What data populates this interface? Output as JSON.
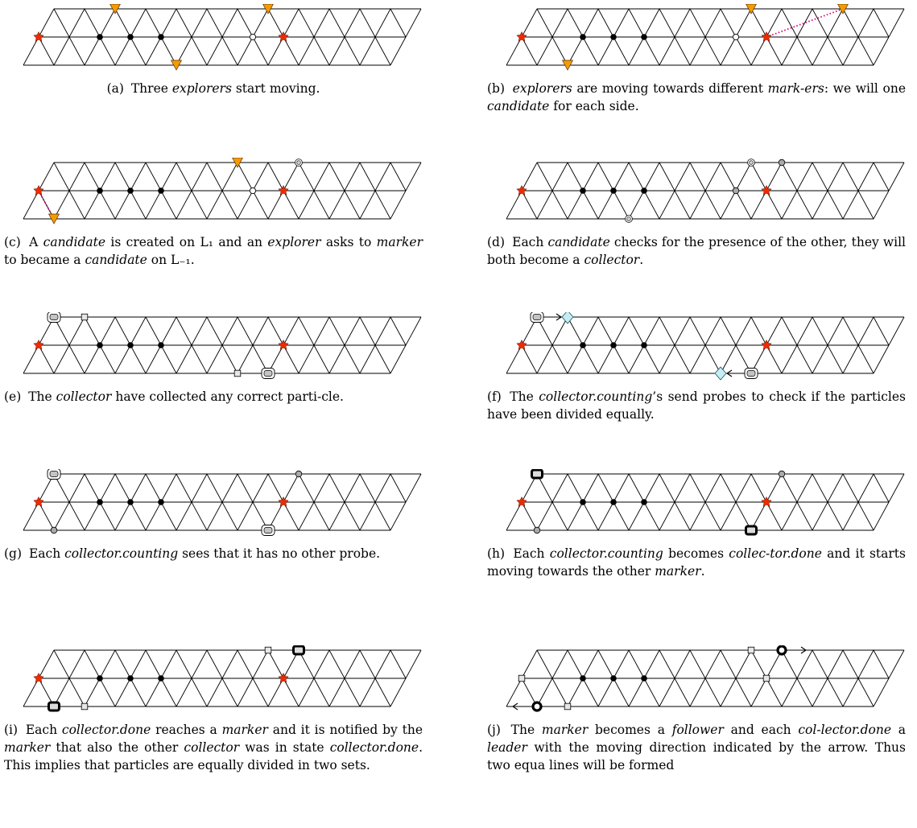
{
  "panels": [
    {
      "id": "a",
      "caption": [
        {
          "text": "(a)",
          "tag": true
        },
        {
          "text": " Three "
        },
        {
          "text": "explorers",
          "em": true
        },
        {
          "text": " start moving."
        }
      ],
      "caption_align": "center",
      "nodes": [
        {
          "type": "star",
          "at": [
            0,
            1
          ]
        },
        {
          "type": "black",
          "at": [
            2,
            1
          ]
        },
        {
          "type": "black",
          "at": [
            3,
            1
          ]
        },
        {
          "type": "black",
          "at": [
            4,
            1
          ]
        },
        {
          "type": "open",
          "at": [
            7,
            1
          ]
        },
        {
          "type": "star",
          "at": [
            8,
            1
          ]
        },
        {
          "type": "tri",
          "at": [
            2,
            0
          ]
        },
        {
          "type": "tri",
          "at": [
            7,
            0
          ]
        },
        {
          "type": "tri",
          "at": [
            5,
            2
          ]
        }
      ]
    },
    {
      "id": "b",
      "caption": [
        {
          "text": "(b)",
          "tag": true
        },
        {
          "text": "  "
        },
        {
          "text": "explorers",
          "em": true
        },
        {
          "text": " are moving towards different "
        },
        {
          "text": "mark-ers",
          "em": true
        },
        {
          "text": ": we will one "
        },
        {
          "text": "candidate",
          "em": true
        },
        {
          "text": " for each side."
        }
      ],
      "nodes": [
        {
          "type": "star",
          "at": [
            0,
            1
          ]
        },
        {
          "type": "black",
          "at": [
            2,
            1
          ]
        },
        {
          "type": "black",
          "at": [
            3,
            1
          ]
        },
        {
          "type": "black",
          "at": [
            4,
            1
          ]
        },
        {
          "type": "open",
          "at": [
            7,
            1
          ]
        },
        {
          "type": "star",
          "at": [
            8,
            1
          ]
        },
        {
          "type": "tri",
          "at": [
            7,
            0
          ]
        },
        {
          "type": "tri",
          "at": [
            10,
            0
          ]
        },
        {
          "type": "tri",
          "at": [
            2,
            2
          ]
        },
        {
          "type": "dotted",
          "from": [
            10,
            0
          ],
          "to": [
            8,
            1
          ]
        }
      ]
    },
    {
      "id": "c",
      "caption": [
        {
          "text": "(c)",
          "tag": true
        },
        {
          "text": " A "
        },
        {
          "text": "candidate",
          "em": true
        },
        {
          "text": " is created on L₁ and an "
        },
        {
          "text": "explorer",
          "em": true
        },
        {
          "text": " asks to "
        },
        {
          "text": "marker",
          "em": true
        },
        {
          "text": " to became a "
        },
        {
          "text": "candidate",
          "em": true
        },
        {
          "text": " on L₋₁."
        }
      ],
      "nodes": [
        {
          "type": "star",
          "at": [
            0,
            1
          ]
        },
        {
          "type": "black",
          "at": [
            2,
            1
          ]
        },
        {
          "type": "black",
          "at": [
            3,
            1
          ]
        },
        {
          "type": "black",
          "at": [
            4,
            1
          ]
        },
        {
          "type": "open",
          "at": [
            7,
            1
          ]
        },
        {
          "type": "star",
          "at": [
            8,
            1
          ]
        },
        {
          "type": "tri",
          "at": [
            6,
            0
          ]
        },
        {
          "type": "double",
          "at": [
            8,
            0
          ]
        },
        {
          "type": "tri",
          "at": [
            1,
            2
          ]
        },
        {
          "type": "dotted",
          "from": [
            0,
            1
          ],
          "to": [
            1,
            2
          ]
        }
      ]
    },
    {
      "id": "d",
      "caption": [
        {
          "text": "(d)",
          "tag": true
        },
        {
          "text": " Each "
        },
        {
          "text": "candidate",
          "em": true
        },
        {
          "text": " checks for the presence of the other, they will both become a "
        },
        {
          "text": "collector",
          "em": true
        },
        {
          "text": "."
        }
      ],
      "nodes": [
        {
          "type": "star",
          "at": [
            0,
            1
          ]
        },
        {
          "type": "black",
          "at": [
            2,
            1
          ]
        },
        {
          "type": "black",
          "at": [
            3,
            1
          ]
        },
        {
          "type": "black",
          "at": [
            4,
            1
          ]
        },
        {
          "type": "grey",
          "at": [
            7,
            1
          ]
        },
        {
          "type": "star",
          "at": [
            8,
            1
          ]
        },
        {
          "type": "double",
          "at": [
            7,
            0
          ]
        },
        {
          "type": "grey",
          "at": [
            8,
            0
          ]
        },
        {
          "type": "double",
          "at": [
            4,
            2
          ]
        }
      ]
    },
    {
      "id": "e",
      "caption": [
        {
          "text": "(e)",
          "tag": true
        },
        {
          "text": " The "
        },
        {
          "text": "collector",
          "em": true
        },
        {
          "text": " have collected any correct parti-cle."
        }
      ],
      "nodes": [
        {
          "type": "star",
          "at": [
            0,
            1
          ]
        },
        {
          "type": "black",
          "at": [
            2,
            1
          ]
        },
        {
          "type": "black",
          "at": [
            3,
            1
          ]
        },
        {
          "type": "black",
          "at": [
            4,
            1
          ]
        },
        {
          "type": "star",
          "at": [
            8,
            1
          ]
        },
        {
          "type": "rbox",
          "at": [
            0,
            0
          ]
        },
        {
          "type": "sq",
          "at": [
            1,
            0
          ]
        },
        {
          "type": "sq",
          "at": [
            7,
            2
          ]
        },
        {
          "type": "rbox",
          "at": [
            8,
            2
          ]
        }
      ]
    },
    {
      "id": "f",
      "caption": [
        {
          "text": "(f)",
          "tag": true
        },
        {
          "text": " The "
        },
        {
          "text": "collector.counting",
          "em": true
        },
        {
          "text": "’s send probes to check if the particles have been divided equally."
        }
      ],
      "nodes": [
        {
          "type": "star",
          "at": [
            0,
            1
          ]
        },
        {
          "type": "black",
          "at": [
            2,
            1
          ]
        },
        {
          "type": "black",
          "at": [
            3,
            1
          ]
        },
        {
          "type": "black",
          "at": [
            4,
            1
          ]
        },
        {
          "type": "star",
          "at": [
            8,
            1
          ]
        },
        {
          "type": "rbox",
          "at": [
            0,
            0
          ]
        },
        {
          "type": "diamond",
          "at": [
            1,
            0
          ]
        },
        {
          "type": "diamond",
          "at": [
            7,
            2
          ]
        },
        {
          "type": "rbox",
          "at": [
            8,
            2
          ]
        },
        {
          "type": "arrow",
          "from": [
            0,
            0
          ],
          "to": [
            1,
            0
          ]
        },
        {
          "type": "arrow",
          "from": [
            8,
            2
          ],
          "to": [
            7,
            2
          ]
        }
      ]
    },
    {
      "id": "g",
      "caption": [
        {
          "text": "(g)",
          "tag": true
        },
        {
          "text": " Each "
        },
        {
          "text": "collector.counting",
          "em": true
        },
        {
          "text": " sees that it has no other probe."
        }
      ],
      "nodes": [
        {
          "type": "star",
          "at": [
            0,
            1
          ]
        },
        {
          "type": "black",
          "at": [
            2,
            1
          ]
        },
        {
          "type": "black",
          "at": [
            3,
            1
          ]
        },
        {
          "type": "black",
          "at": [
            4,
            1
          ]
        },
        {
          "type": "star",
          "at": [
            8,
            1
          ]
        },
        {
          "type": "rbox",
          "at": [
            0,
            0
          ]
        },
        {
          "type": "grey",
          "at": [
            8,
            0
          ]
        },
        {
          "type": "grey",
          "at": [
            1,
            2
          ]
        },
        {
          "type": "rbox",
          "at": [
            8,
            2
          ]
        }
      ]
    },
    {
      "id": "h",
      "caption": [
        {
          "text": "(h)",
          "tag": true
        },
        {
          "text": " Each "
        },
        {
          "text": "collector.counting",
          "em": true
        },
        {
          "text": " becomes "
        },
        {
          "text": "collec-tor.done",
          "em": true
        },
        {
          "text": " and it starts moving towards the other "
        },
        {
          "text": "marker",
          "em": true
        },
        {
          "text": "."
        }
      ],
      "nodes": [
        {
          "type": "star",
          "at": [
            0,
            1
          ]
        },
        {
          "type": "black",
          "at": [
            2,
            1
          ]
        },
        {
          "type": "black",
          "at": [
            3,
            1
          ]
        },
        {
          "type": "black",
          "at": [
            4,
            1
          ]
        },
        {
          "type": "star",
          "at": [
            8,
            1
          ]
        },
        {
          "type": "thick",
          "at": [
            0,
            0
          ]
        },
        {
          "type": "grey",
          "at": [
            8,
            0
          ]
        },
        {
          "type": "grey",
          "at": [
            1,
            2
          ]
        },
        {
          "type": "thick",
          "at": [
            8,
            2
          ]
        }
      ]
    },
    {
      "id": "i",
      "caption": [
        {
          "text": "(i)",
          "tag": true
        },
        {
          "text": " Each "
        },
        {
          "text": "collector.done",
          "em": true
        },
        {
          "text": " reaches a "
        },
        {
          "text": "marker",
          "em": true
        },
        {
          "text": " and it is notified by the "
        },
        {
          "text": "marker",
          "em": true
        },
        {
          "text": " that also the other "
        },
        {
          "text": "collector",
          "em": true
        },
        {
          "text": " was in state "
        },
        {
          "text": "collector.done",
          "em": true
        },
        {
          "text": ". This implies that particles are equally divided in two sets."
        }
      ],
      "nodes": [
        {
          "type": "star",
          "at": [
            0,
            1
          ]
        },
        {
          "type": "black",
          "at": [
            2,
            1
          ]
        },
        {
          "type": "black",
          "at": [
            3,
            1
          ]
        },
        {
          "type": "black",
          "at": [
            4,
            1
          ]
        },
        {
          "type": "star",
          "at": [
            8,
            1
          ]
        },
        {
          "type": "sq",
          "at": [
            7,
            0
          ]
        },
        {
          "type": "thick",
          "at": [
            8,
            0
          ]
        },
        {
          "type": "thick",
          "at": [
            1,
            2
          ]
        },
        {
          "type": "sq",
          "at": [
            2,
            2
          ]
        }
      ]
    },
    {
      "id": "j",
      "caption": [
        {
          "text": "(j)",
          "tag": true
        },
        {
          "text": " The "
        },
        {
          "text": "marker",
          "em": true
        },
        {
          "text": " becomes a "
        },
        {
          "text": "follower",
          "em": true
        },
        {
          "text": " and each "
        },
        {
          "text": "col-lector.done",
          "em": true
        },
        {
          "text": " a "
        },
        {
          "text": "leader",
          "em": true
        },
        {
          "text": " with the moving direction indicated by the arrow. Thus two equa lines will be formed"
        }
      ],
      "nodes": [
        {
          "type": "sq",
          "at": [
            0,
            1
          ]
        },
        {
          "type": "black",
          "at": [
            2,
            1
          ]
        },
        {
          "type": "black",
          "at": [
            3,
            1
          ]
        },
        {
          "type": "black",
          "at": [
            4,
            1
          ]
        },
        {
          "type": "sq",
          "at": [
            8,
            1
          ]
        },
        {
          "type": "sq",
          "at": [
            7,
            0
          ]
        },
        {
          "type": "ring",
          "at": [
            8,
            0
          ]
        },
        {
          "type": "ring",
          "at": [
            1,
            2
          ]
        },
        {
          "type": "sq",
          "at": [
            2,
            2
          ]
        },
        {
          "type": "arrow",
          "from": [
            8,
            0
          ],
          "to": [
            9,
            0
          ]
        },
        {
          "type": "arrow",
          "from": [
            1,
            2
          ],
          "to": [
            0,
            2
          ]
        }
      ]
    }
  ],
  "colors": {
    "star": "#ee2b00",
    "triangle": "#f59b00",
    "diamond": "#c6ecf4",
    "grey": "#a9a9a9",
    "dotted": "#d7006e"
  }
}
